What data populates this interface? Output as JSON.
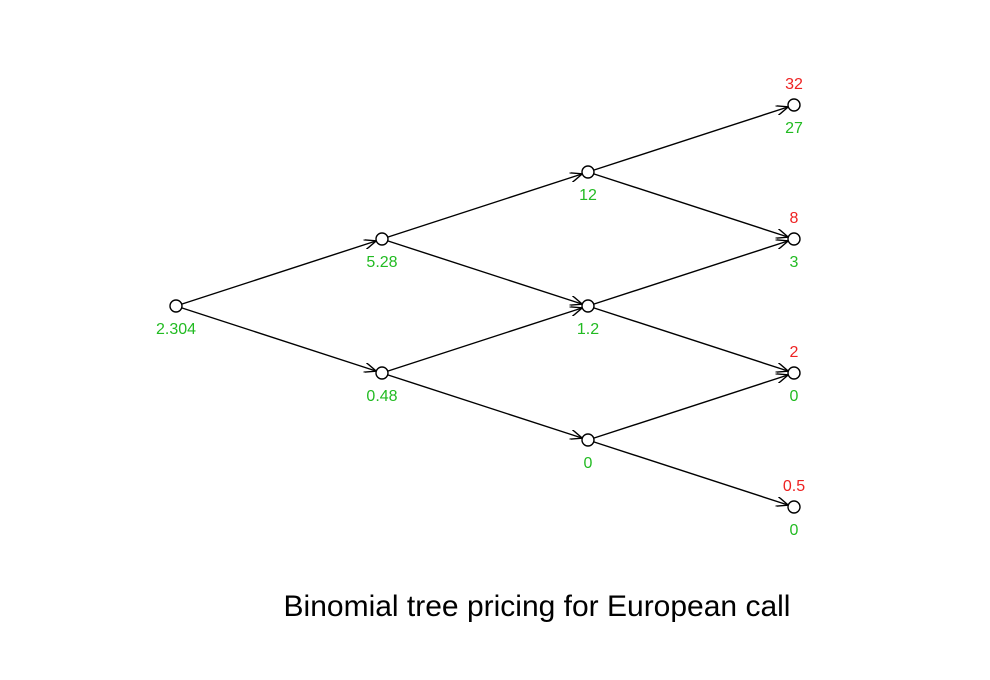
{
  "caption": "Binomial tree pricing for European call",
  "colors": {
    "option_value": "#22bb22",
    "payoff": "#ee2222",
    "edges": "#000000"
  },
  "tree": {
    "steps": 3,
    "levels": [
      {
        "step": 0,
        "nodes": [
          {
            "value": "2.304"
          }
        ]
      },
      {
        "step": 1,
        "nodes": [
          {
            "value": "5.28"
          },
          {
            "value": "0.48"
          }
        ]
      },
      {
        "step": 2,
        "nodes": [
          {
            "value": "12"
          },
          {
            "value": "1.2"
          },
          {
            "value": "0"
          }
        ]
      },
      {
        "step": 3,
        "nodes": [
          {
            "payoff": "32",
            "value": "27"
          },
          {
            "payoff": "8",
            "value": "3"
          },
          {
            "payoff": "2",
            "value": "0"
          },
          {
            "payoff": "0.5",
            "value": "0"
          }
        ]
      }
    ]
  }
}
